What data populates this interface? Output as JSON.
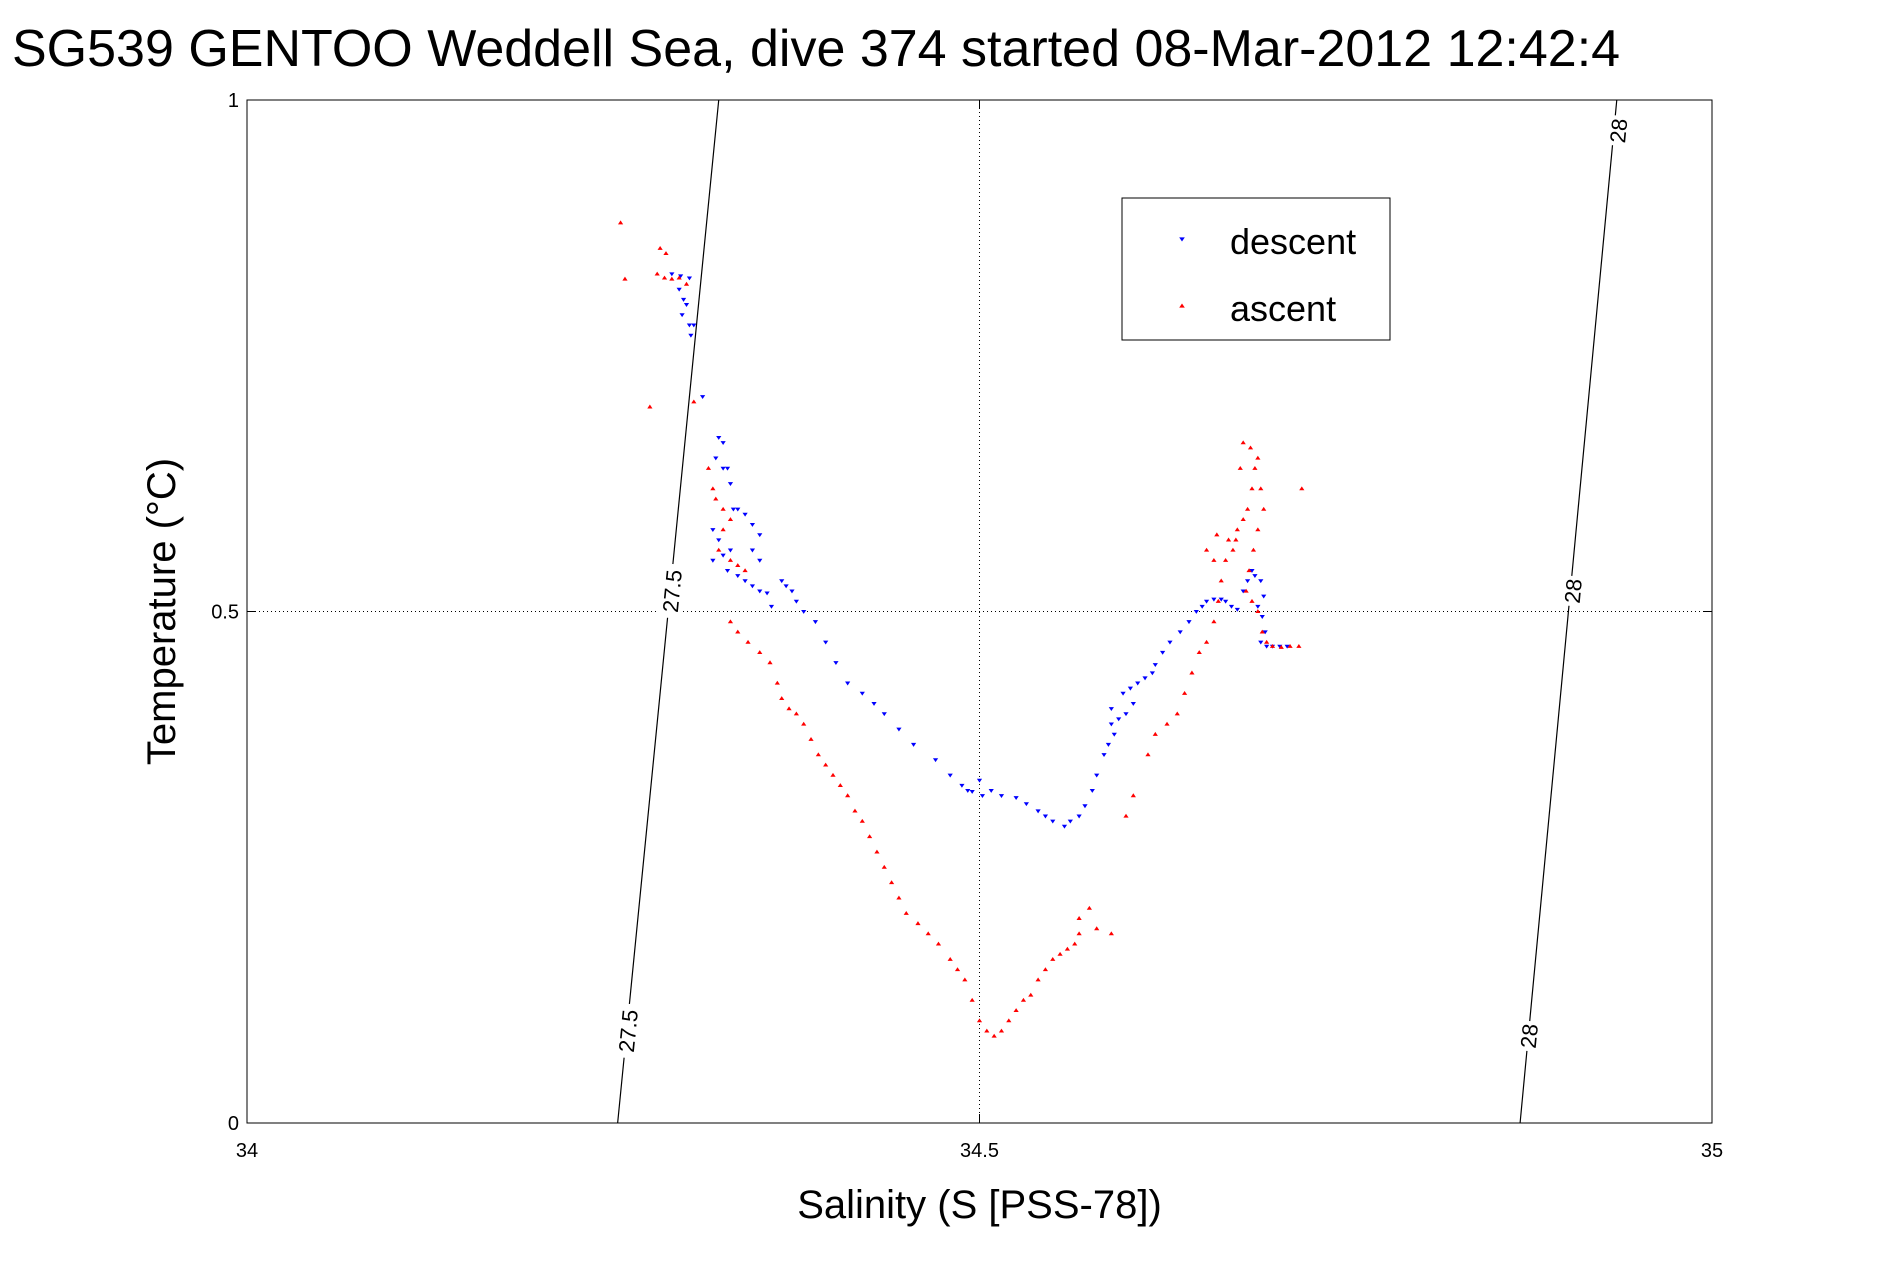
{
  "chart_data": {
    "type": "scatter",
    "title": "SG539 GENTOO Weddell Sea, dive 374 started 08-Mar-2012 12:42:4",
    "xlabel": "Salinity (S [PSS-78])",
    "ylabel": "Temperature (°C)",
    "xlim": [
      34,
      35
    ],
    "ylim": [
      0,
      1
    ],
    "xticks": [
      34,
      34.5,
      35
    ],
    "xtick_labels": [
      "34",
      "34.5",
      "35"
    ],
    "yticks": [
      0,
      0.5,
      1
    ],
    "ytick_labels": [
      "0",
      "0.5",
      "1"
    ],
    "grid": true,
    "legend_position": "top-right",
    "density_contours": [
      {
        "label": "27.5",
        "points": [
          [
            34.253,
            0
          ],
          [
            34.322,
            1
          ]
        ],
        "label_positions": [
          [
            34.26,
            0.09
          ],
          [
            34.29,
            0.52
          ]
        ]
      },
      {
        "label": "28",
        "points": [
          [
            34.869,
            0
          ],
          [
            34.935,
            1
          ]
        ],
        "label_positions": [
          [
            34.875,
            0.085
          ],
          [
            34.905,
            0.52
          ],
          [
            34.936,
            0.97
          ]
        ]
      }
    ],
    "series": [
      {
        "name": "descent",
        "color": "#0000ff",
        "marker": "triangle-down",
        "points": [
          [
            34.29,
            0.83
          ],
          [
            34.296,
            0.828
          ],
          [
            34.302,
            0.826
          ],
          [
            34.295,
            0.815
          ],
          [
            34.298,
            0.805
          ],
          [
            34.3,
            0.8
          ],
          [
            34.297,
            0.79
          ],
          [
            34.302,
            0.78
          ],
          [
            34.305,
            0.78
          ],
          [
            34.303,
            0.77
          ],
          [
            34.311,
            0.71
          ],
          [
            34.322,
            0.67
          ],
          [
            34.325,
            0.665
          ],
          [
            34.32,
            0.65
          ],
          [
            34.325,
            0.64
          ],
          [
            34.328,
            0.64
          ],
          [
            34.33,
            0.625
          ],
          [
            34.332,
            0.6
          ],
          [
            34.335,
            0.6
          ],
          [
            34.34,
            0.595
          ],
          [
            34.345,
            0.585
          ],
          [
            34.35,
            0.575
          ],
          [
            34.318,
            0.58
          ],
          [
            34.322,
            0.57
          ],
          [
            34.33,
            0.56
          ],
          [
            34.325,
            0.555
          ],
          [
            34.345,
            0.56
          ],
          [
            34.35,
            0.55
          ],
          [
            34.318,
            0.55
          ],
          [
            34.328,
            0.54
          ],
          [
            34.335,
            0.535
          ],
          [
            34.34,
            0.53
          ],
          [
            34.345,
            0.525
          ],
          [
            34.35,
            0.52
          ],
          [
            34.355,
            0.518
          ],
          [
            34.358,
            0.505
          ],
          [
            34.365,
            0.53
          ],
          [
            34.368,
            0.525
          ],
          [
            34.372,
            0.52
          ],
          [
            34.375,
            0.51
          ],
          [
            34.38,
            0.5
          ],
          [
            34.388,
            0.49
          ],
          [
            34.395,
            0.47
          ],
          [
            34.402,
            0.45
          ],
          [
            34.41,
            0.43
          ],
          [
            34.42,
            0.42
          ],
          [
            34.428,
            0.41
          ],
          [
            34.435,
            0.4
          ],
          [
            34.445,
            0.385
          ],
          [
            34.455,
            0.37
          ],
          [
            34.47,
            0.355
          ],
          [
            34.48,
            0.34
          ],
          [
            34.488,
            0.33
          ],
          [
            34.492,
            0.325
          ],
          [
            34.495,
            0.324
          ],
          [
            34.5,
            0.335
          ],
          [
            34.502,
            0.32
          ],
          [
            34.508,
            0.325
          ],
          [
            34.515,
            0.32
          ],
          [
            34.525,
            0.318
          ],
          [
            34.532,
            0.312
          ],
          [
            34.54,
            0.305
          ],
          [
            34.545,
            0.3
          ],
          [
            34.55,
            0.295
          ],
          [
            34.558,
            0.29
          ],
          [
            34.562,
            0.295
          ],
          [
            34.568,
            0.3
          ],
          [
            34.572,
            0.31
          ],
          [
            34.577,
            0.325
          ],
          [
            34.58,
            0.34
          ],
          [
            34.585,
            0.36
          ],
          [
            34.588,
            0.37
          ],
          [
            34.592,
            0.38
          ],
          [
            34.59,
            0.39
          ],
          [
            34.595,
            0.395
          ],
          [
            34.6,
            0.4
          ],
          [
            34.605,
            0.41
          ],
          [
            34.59,
            0.405
          ],
          [
            34.598,
            0.42
          ],
          [
            34.603,
            0.425
          ],
          [
            34.608,
            0.43
          ],
          [
            34.613,
            0.435
          ],
          [
            34.618,
            0.44
          ],
          [
            34.62,
            0.448
          ],
          [
            34.625,
            0.46
          ],
          [
            34.63,
            0.47
          ],
          [
            34.637,
            0.48
          ],
          [
            34.643,
            0.49
          ],
          [
            34.648,
            0.5
          ],
          [
            34.652,
            0.505
          ],
          [
            34.655,
            0.51
          ],
          [
            34.66,
            0.512
          ],
          [
            34.665,
            0.512
          ],
          [
            34.668,
            0.51
          ],
          [
            34.672,
            0.505
          ],
          [
            34.676,
            0.502
          ],
          [
            34.68,
            0.52
          ],
          [
            34.683,
            0.53
          ],
          [
            34.686,
            0.54
          ],
          [
            34.688,
            0.535
          ],
          [
            34.692,
            0.53
          ],
          [
            34.694,
            0.515
          ],
          [
            34.69,
            0.505
          ],
          [
            34.693,
            0.495
          ],
          [
            34.695,
            0.48
          ],
          [
            34.692,
            0.47
          ],
          [
            34.696,
            0.466
          ],
          [
            34.7,
            0.466
          ],
          [
            34.705,
            0.466
          ],
          [
            34.71,
            0.466
          ]
        ]
      },
      {
        "name": "ascent",
        "color": "#ff0000",
        "marker": "triangle-up",
        "points": [
          [
            34.255,
            0.88
          ],
          [
            34.282,
            0.855
          ],
          [
            34.286,
            0.85
          ],
          [
            34.28,
            0.83
          ],
          [
            34.285,
            0.826
          ],
          [
            34.29,
            0.825
          ],
          [
            34.295,
            0.826
          ],
          [
            34.258,
            0.825
          ],
          [
            34.3,
            0.82
          ],
          [
            34.275,
            0.7
          ],
          [
            34.305,
            0.705
          ],
          [
            34.315,
            0.64
          ],
          [
            34.318,
            0.62
          ],
          [
            34.32,
            0.61
          ],
          [
            34.325,
            0.6
          ],
          [
            34.33,
            0.59
          ],
          [
            34.325,
            0.58
          ],
          [
            34.322,
            0.56
          ],
          [
            34.33,
            0.55
          ],
          [
            34.335,
            0.545
          ],
          [
            34.34,
            0.54
          ],
          [
            34.33,
            0.49
          ],
          [
            34.335,
            0.48
          ],
          [
            34.342,
            0.47
          ],
          [
            34.35,
            0.46
          ],
          [
            34.357,
            0.45
          ],
          [
            34.362,
            0.43
          ],
          [
            34.365,
            0.415
          ],
          [
            34.37,
            0.405
          ],
          [
            34.375,
            0.4
          ],
          [
            34.38,
            0.39
          ],
          [
            34.385,
            0.375
          ],
          [
            34.39,
            0.36
          ],
          [
            34.395,
            0.35
          ],
          [
            34.4,
            0.34
          ],
          [
            34.405,
            0.33
          ],
          [
            34.41,
            0.32
          ],
          [
            34.415,
            0.305
          ],
          [
            34.42,
            0.295
          ],
          [
            34.425,
            0.28
          ],
          [
            34.43,
            0.265
          ],
          [
            34.435,
            0.25
          ],
          [
            34.44,
            0.235
          ],
          [
            34.445,
            0.22
          ],
          [
            34.45,
            0.205
          ],
          [
            34.458,
            0.195
          ],
          [
            34.465,
            0.185
          ],
          [
            34.472,
            0.175
          ],
          [
            34.48,
            0.16
          ],
          [
            34.485,
            0.15
          ],
          [
            34.49,
            0.14
          ],
          [
            34.495,
            0.12
          ],
          [
            34.5,
            0.1
          ],
          [
            34.505,
            0.09
          ],
          [
            34.51,
            0.085
          ],
          [
            34.515,
            0.09
          ],
          [
            34.52,
            0.1
          ],
          [
            34.525,
            0.11
          ],
          [
            34.53,
            0.12
          ],
          [
            34.535,
            0.125
          ],
          [
            34.54,
            0.14
          ],
          [
            34.545,
            0.15
          ],
          [
            34.55,
            0.16
          ],
          [
            34.555,
            0.165
          ],
          [
            34.56,
            0.17
          ],
          [
            34.565,
            0.175
          ],
          [
            34.568,
            0.185
          ],
          [
            34.575,
            0.21
          ],
          [
            34.58,
            0.19
          ],
          [
            34.568,
            0.2
          ],
          [
            34.59,
            0.185
          ],
          [
            34.6,
            0.3
          ],
          [
            34.605,
            0.32
          ],
          [
            34.615,
            0.36
          ],
          [
            34.62,
            0.38
          ],
          [
            34.628,
            0.39
          ],
          [
            34.635,
            0.4
          ],
          [
            34.64,
            0.42
          ],
          [
            34.645,
            0.44
          ],
          [
            34.65,
            0.46
          ],
          [
            34.655,
            0.47
          ],
          [
            34.66,
            0.49
          ],
          [
            34.663,
            0.51
          ],
          [
            34.665,
            0.53
          ],
          [
            34.668,
            0.55
          ],
          [
            34.67,
            0.57
          ],
          [
            34.673,
            0.56
          ],
          [
            34.676,
            0.58
          ],
          [
            34.68,
            0.59
          ],
          [
            34.683,
            0.6
          ],
          [
            34.686,
            0.62
          ],
          [
            34.688,
            0.64
          ],
          [
            34.69,
            0.65
          ],
          [
            34.685,
            0.66
          ],
          [
            34.68,
            0.665
          ],
          [
            34.678,
            0.64
          ],
          [
            34.692,
            0.62
          ],
          [
            34.694,
            0.6
          ],
          [
            34.69,
            0.58
          ],
          [
            34.687,
            0.56
          ],
          [
            34.684,
            0.54
          ],
          [
            34.682,
            0.52
          ],
          [
            34.686,
            0.51
          ],
          [
            34.69,
            0.5
          ],
          [
            34.693,
            0.48
          ],
          [
            34.696,
            0.47
          ],
          [
            34.7,
            0.466
          ],
          [
            34.706,
            0.465
          ],
          [
            34.712,
            0.466
          ],
          [
            34.718,
            0.466
          ],
          [
            34.72,
            0.62
          ],
          [
            34.66,
            0.55
          ],
          [
            34.655,
            0.56
          ],
          [
            34.662,
            0.575
          ],
          [
            34.675,
            0.57
          ]
        ]
      }
    ]
  }
}
